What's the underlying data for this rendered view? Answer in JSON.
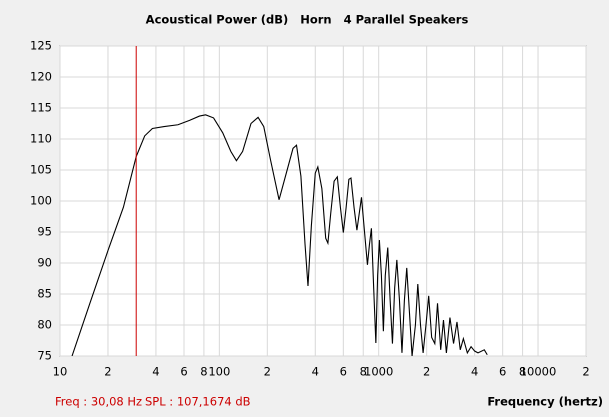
{
  "chart_data": {
    "type": "line",
    "title": "Acoustical Power (dB)   Horn   4 Parallel Speakers",
    "x_label": "Frequency (hertz)",
    "x_scale": "log",
    "grid": true,
    "xlim": [
      10,
      20000
    ],
    "ylim": [
      75,
      125
    ],
    "xticks": [
      10,
      {
        "value": 20,
        "label": "2"
      },
      {
        "value": 40,
        "label": "4"
      },
      {
        "value": 60,
        "label": "6"
      },
      {
        "value": 80,
        "label": "8"
      },
      100,
      {
        "value": 200,
        "label": "2"
      },
      {
        "value": 400,
        "label": "4"
      },
      {
        "value": 600,
        "label": "6"
      },
      {
        "value": 800,
        "label": "8"
      },
      1000,
      {
        "value": 2000,
        "label": "2"
      },
      {
        "value": 4000,
        "label": "4"
      },
      {
        "value": 6000,
        "label": "6"
      },
      {
        "value": 8000,
        "label": "8"
      },
      10000,
      {
        "value": 20000,
        "label": "2"
      }
    ],
    "yticks": [
      75,
      80,
      85,
      90,
      95,
      100,
      105,
      110,
      115,
      120,
      125
    ],
    "cursor": {
      "x": 30.08,
      "x_label": "Freq : 30,08 Hz",
      "y": 107.1674,
      "y_label": "SPL : 107,1674 dB",
      "color": "#cc0000"
    },
    "x": [
      11.9,
      15.4,
      20,
      25,
      30.08,
      34,
      38,
      45,
      55,
      65,
      75,
      82,
      92,
      105,
      118,
      128,
      140,
      158,
      175,
      190,
      210,
      237,
      260,
      290,
      305,
      325,
      345,
      360,
      378,
      400,
      415,
      440,
      465,
      480,
      500,
      525,
      550,
      575,
      600,
      625,
      650,
      670,
      700,
      730,
      755,
      780,
      815,
      850,
      875,
      900,
      930,
      960,
      985,
      1010,
      1040,
      1070,
      1100,
      1140,
      1180,
      1220,
      1260,
      1300,
      1350,
      1400,
      1450,
      1500,
      1560,
      1620,
      1700,
      1760,
      1830,
      1900,
      1980,
      2060,
      2150,
      2250,
      2340,
      2450,
      2550,
      2660,
      2800,
      2950,
      3100,
      3250,
      3400,
      3600,
      3800,
      4000,
      4200,
      4600,
      4800
    ],
    "series": [
      {
        "color": "#000000",
        "values": [
          75,
          83.5,
          92,
          99,
          107.17,
          110.5,
          111.7,
          112,
          112.3,
          113,
          113.7,
          113.9,
          113.4,
          111,
          108,
          106.5,
          108,
          112.5,
          113.5,
          112,
          106.5,
          100.2,
          104,
          108.5,
          109,
          104,
          93,
          86.3,
          96,
          104.5,
          105.5,
          102,
          94,
          93.2,
          98,
          103.2,
          103.9,
          99,
          94.9,
          99,
          103.5,
          103.7,
          99,
          95.3,
          98,
          100.6,
          95,
          89.7,
          93,
          95.6,
          86,
          77.1,
          88,
          93.7,
          88,
          79,
          88,
          92.5,
          84,
          77,
          86,
          90.5,
          84,
          75.5,
          84,
          89.2,
          82,
          75,
          80,
          86.6,
          80,
          75.5,
          80,
          84.7,
          78,
          77,
          83.5,
          76,
          80.8,
          75.5,
          81.2,
          77,
          80.5,
          76,
          77.8,
          75.5,
          76.5,
          75.8,
          75.5,
          76,
          75.2
        ]
      }
    ]
  }
}
